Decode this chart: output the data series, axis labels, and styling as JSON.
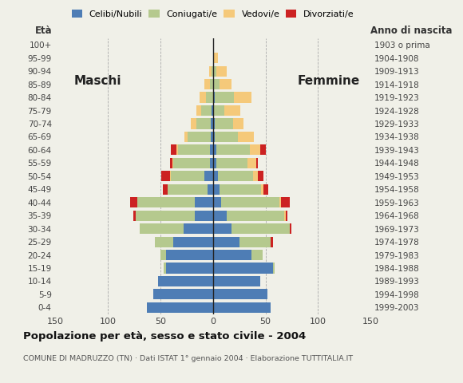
{
  "age_groups": [
    "0-4",
    "5-9",
    "10-14",
    "15-19",
    "20-24",
    "25-29",
    "30-34",
    "35-39",
    "40-44",
    "45-49",
    "50-54",
    "55-59",
    "60-64",
    "65-69",
    "70-74",
    "75-79",
    "80-84",
    "85-89",
    "90-94",
    "95-99",
    "100+"
  ],
  "birth_years": [
    "1999-2003",
    "1994-1998",
    "1989-1993",
    "1984-1988",
    "1979-1983",
    "1974-1978",
    "1969-1973",
    "1964-1968",
    "1959-1963",
    "1954-1958",
    "1949-1953",
    "1944-1948",
    "1939-1943",
    "1934-1938",
    "1929-1933",
    "1924-1928",
    "1919-1923",
    "1914-1918",
    "1909-1913",
    "1904-1908",
    "1903 o prima"
  ],
  "colors": {
    "celibi": "#4e7db5",
    "coniugati": "#b5c98e",
    "vedovi": "#f5c97a",
    "divorziati": "#cc2222",
    "bg": "#f0f0e8"
  },
  "males": {
    "celibi": [
      63,
      57,
      52,
      45,
      45,
      38,
      28,
      17,
      17,
      5,
      8,
      3,
      3,
      2,
      2,
      1,
      0,
      0,
      0,
      0,
      0
    ],
    "coniugati": [
      0,
      0,
      0,
      2,
      5,
      17,
      42,
      57,
      55,
      38,
      32,
      35,
      30,
      22,
      14,
      10,
      7,
      3,
      1,
      0,
      0
    ],
    "vedovi": [
      0,
      0,
      0,
      0,
      0,
      0,
      0,
      0,
      0,
      0,
      1,
      1,
      2,
      3,
      5,
      5,
      6,
      5,
      3,
      0,
      0
    ],
    "divorziati": [
      0,
      0,
      0,
      0,
      0,
      0,
      0,
      2,
      7,
      5,
      8,
      2,
      5,
      0,
      0,
      0,
      0,
      0,
      0,
      0,
      0
    ]
  },
  "females": {
    "celibi": [
      55,
      52,
      45,
      57,
      37,
      25,
      18,
      13,
      8,
      6,
      5,
      3,
      3,
      2,
      2,
      1,
      2,
      0,
      0,
      0,
      0
    ],
    "coniugati": [
      0,
      0,
      0,
      2,
      10,
      30,
      55,
      55,
      55,
      40,
      33,
      30,
      32,
      22,
      17,
      10,
      18,
      6,
      3,
      0,
      0
    ],
    "vedovi": [
      0,
      0,
      0,
      0,
      0,
      0,
      0,
      1,
      2,
      2,
      5,
      8,
      10,
      15,
      10,
      15,
      17,
      12,
      10,
      5,
      0
    ],
    "divorziati": [
      0,
      0,
      0,
      0,
      0,
      2,
      2,
      2,
      8,
      5,
      5,
      2,
      5,
      0,
      0,
      0,
      0,
      0,
      0,
      0,
      0
    ]
  },
  "xlim": 150,
  "xticks": [
    -150,
    -100,
    -50,
    0,
    50,
    100,
    150
  ],
  "title": "Popolazione per età, sesso e stato civile - 2004",
  "subtitle": "COMUNE DI MADRUZZO (TN) · Dati ISTAT 1° gennaio 2004 · Elaborazione TUTTITALIA.IT",
  "label_maschi": "Maschi",
  "label_femmine": "Femmine",
  "label_eta": "Età",
  "label_anno": "Anno di nascita",
  "legend_labels": [
    "Celibi/Nubili",
    "Coniugati/e",
    "Vedovi/e",
    "Divorziati/e"
  ]
}
